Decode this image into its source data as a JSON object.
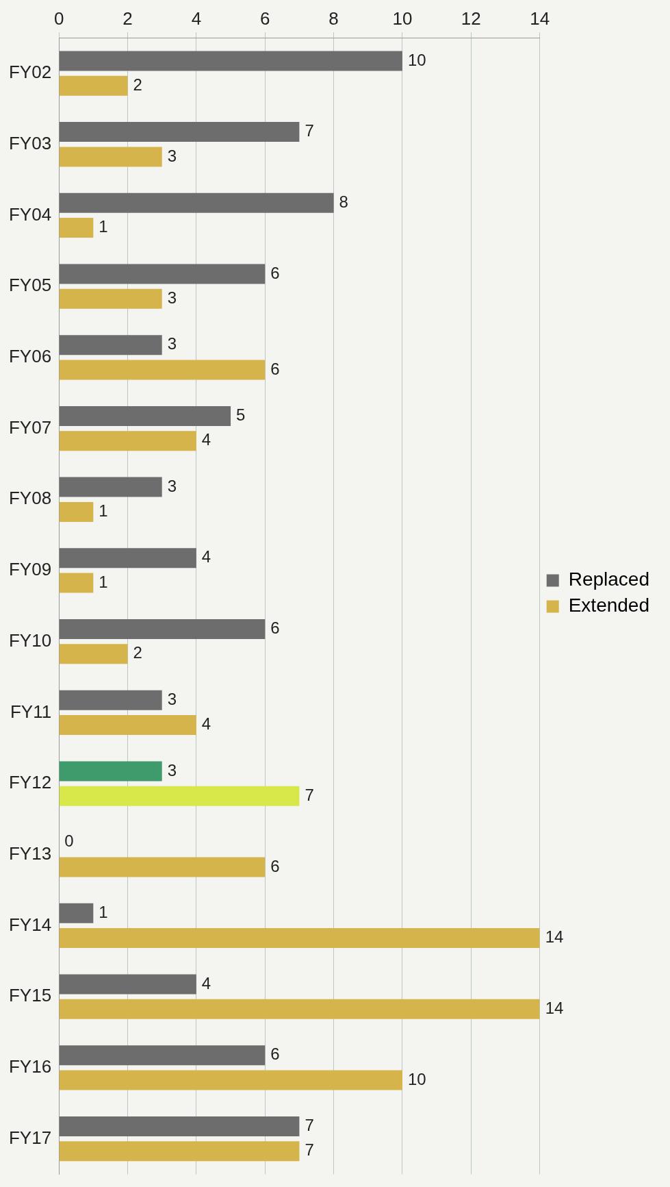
{
  "chart_data": {
    "type": "bar",
    "orientation": "horizontal",
    "categories": [
      "FY02",
      "FY03",
      "FY04",
      "FY05",
      "FY06",
      "FY07",
      "FY08",
      "FY09",
      "FY10",
      "FY11",
      "FY12",
      "FY13",
      "FY14",
      "FY15",
      "FY16",
      "FY17"
    ],
    "series": [
      {
        "name": "Replaced",
        "color": "#6d6d6d",
        "colors": [
          "#6d6d6d",
          "#6d6d6d",
          "#6d6d6d",
          "#6d6d6d",
          "#6d6d6d",
          "#6d6d6d",
          "#6d6d6d",
          "#6d6d6d",
          "#6d6d6d",
          "#6d6d6d",
          "#3f9a6c",
          "#6d6d6d",
          "#6d6d6d",
          "#6d6d6d",
          "#6d6d6d",
          "#6d6d6d"
        ],
        "values": [
          10,
          7,
          8,
          6,
          3,
          5,
          3,
          4,
          6,
          3,
          3,
          0,
          1,
          4,
          6,
          7
        ]
      },
      {
        "name": "Extended",
        "color": "#d6b44c",
        "colors": [
          "#d6b44c",
          "#d6b44c",
          "#d6b44c",
          "#d6b44c",
          "#d6b44c",
          "#d6b44c",
          "#d6b44c",
          "#d6b44c",
          "#d6b44c",
          "#d6b44c",
          "#d8e84a",
          "#d6b44c",
          "#d6b44c",
          "#d6b44c",
          "#d6b44c",
          "#d6b44c"
        ],
        "values": [
          2,
          3,
          1,
          3,
          6,
          4,
          1,
          1,
          2,
          4,
          7,
          6,
          14,
          14,
          10,
          7
        ]
      }
    ],
    "xlim": [
      0,
      14
    ],
    "xticks": [
      0,
      2,
      4,
      6,
      8,
      10,
      12,
      14
    ],
    "grid": "x",
    "legend": "right",
    "data_labels": true
  }
}
